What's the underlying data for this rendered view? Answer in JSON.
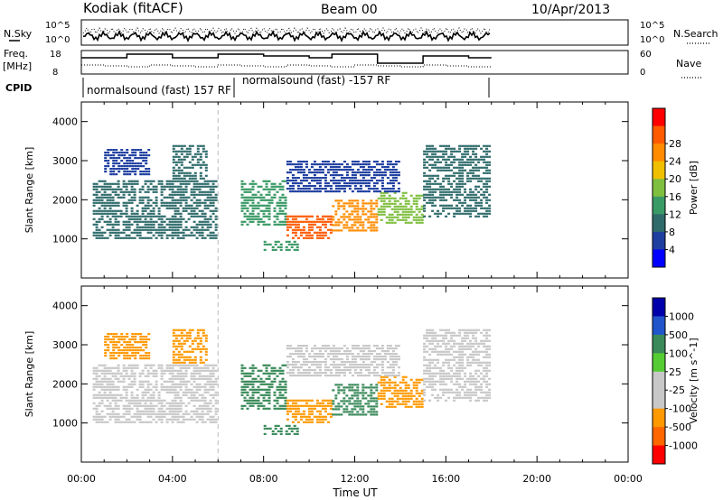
{
  "header": {
    "station": "Kodiak (fitACF)",
    "beam": "Beam 00",
    "date": "10/Apr/2013"
  },
  "noise_panel": {
    "left_label": "N.Sky",
    "right_label": "N.Search",
    "left_ticks": [
      "10^5",
      "10^0"
    ],
    "right_ticks": [
      "10^5",
      "10^0"
    ]
  },
  "freq_panel": {
    "left_label_1": "Freq.",
    "left_label_2": "[MHz]",
    "right_label": "Nave",
    "left_ticks": [
      "18",
      "8"
    ],
    "right_ticks": [
      "60",
      "0"
    ]
  },
  "cpid": {
    "label": "CPID",
    "segment_1": "normalsound (fast) 157 RF",
    "segment_2": "normalsound (fast) -157 RF"
  },
  "colors": {
    "power_scale": [
      "#0000ff",
      "#1f3fa0",
      "#2f6b6b",
      "#3a9a66",
      "#7fbf3f",
      "#f0c000",
      "#ff8c00",
      "#ff5a00",
      "#ff0000"
    ],
    "velocity_scale": [
      "#0000aa",
      "#2255cc",
      "#3a8a5a",
      "#55cc33",
      "#c8c8c8",
      "#c8c8c8",
      "#ff9900",
      "#ff6600",
      "#ff0000"
    ]
  },
  "chart_data": [
    {
      "type": "heatmap",
      "name": "power",
      "ylabel": "Slant Range [km]",
      "colorbar_label": "Power [dB]",
      "colorbar_ticks": [
        "4",
        "8",
        "12",
        "16",
        "20",
        "24",
        "28"
      ],
      "y_ticks": [
        "1000",
        "2000",
        "3000",
        "4000"
      ],
      "ylim": [
        0,
        4500
      ],
      "xlim": [
        0,
        24
      ],
      "regions": [
        {
          "t0": 0.5,
          "t1": 6.0,
          "r0": 1000,
          "r1": 2500,
          "v": 10
        },
        {
          "t0": 1.0,
          "t1": 3.0,
          "r0": 2600,
          "r1": 3300,
          "v": 6
        },
        {
          "t0": 4.0,
          "t1": 5.5,
          "r0": 2500,
          "r1": 3400,
          "v": 8
        },
        {
          "t0": 7.0,
          "t1": 9.0,
          "r0": 1300,
          "r1": 2500,
          "v": 14
        },
        {
          "t0": 9.0,
          "t1": 11.0,
          "r0": 1000,
          "r1": 1600,
          "v": 26
        },
        {
          "t0": 11.0,
          "t1": 13.0,
          "r0": 1200,
          "r1": 2000,
          "v": 22
        },
        {
          "t0": 13.0,
          "t1": 15.0,
          "r0": 1400,
          "r1": 2200,
          "v": 16
        },
        {
          "t0": 15.0,
          "t1": 18.0,
          "r0": 1500,
          "r1": 3400,
          "v": 9
        },
        {
          "t0": 9.0,
          "t1": 14.0,
          "r0": 2200,
          "r1": 3000,
          "v": 7
        },
        {
          "t0": 8.0,
          "t1": 9.5,
          "r0": 700,
          "r1": 950,
          "v": 13
        }
      ]
    },
    {
      "type": "heatmap",
      "name": "velocity",
      "ylabel": "Slant Range [km]",
      "colorbar_label": "Velocity [m s^-1]",
      "colorbar_ticks": [
        "1000",
        "500",
        "100",
        "25",
        "-25",
        "-100",
        "-500",
        "-1000"
      ],
      "y_ticks": [
        "1000",
        "2000",
        "3000",
        "4000"
      ],
      "ylim": [
        0,
        4500
      ],
      "xlim": [
        0,
        24
      ],
      "regions": [
        {
          "t0": 0.5,
          "t1": 6.0,
          "r0": 1000,
          "r1": 2500,
          "v": 0
        },
        {
          "t0": 1.0,
          "t1": 3.0,
          "r0": 2600,
          "r1": 3300,
          "v": -200
        },
        {
          "t0": 4.0,
          "t1": 5.5,
          "r0": 2500,
          "r1": 3400,
          "v": -300
        },
        {
          "t0": 7.0,
          "t1": 9.0,
          "r0": 1300,
          "r1": 2500,
          "v": 150
        },
        {
          "t0": 9.0,
          "t1": 11.0,
          "r0": 1000,
          "r1": 1600,
          "v": -400
        },
        {
          "t0": 11.0,
          "t1": 13.0,
          "r0": 1200,
          "r1": 2000,
          "v": 200
        },
        {
          "t0": 13.0,
          "t1": 15.0,
          "r0": 1400,
          "r1": 2200,
          "v": -300
        },
        {
          "t0": 15.0,
          "t1": 18.0,
          "r0": 1500,
          "r1": 3400,
          "v": 0
        },
        {
          "t0": 9.0,
          "t1": 14.0,
          "r0": 2200,
          "r1": 3000,
          "v": 0
        },
        {
          "t0": 8.0,
          "t1": 9.5,
          "r0": 700,
          "r1": 950,
          "v": 300
        }
      ]
    }
  ],
  "xaxis": {
    "label": "Time UT",
    "ticks": [
      "00:00",
      "04:00",
      "08:00",
      "12:00",
      "16:00",
      "20:00",
      "00:00"
    ]
  }
}
